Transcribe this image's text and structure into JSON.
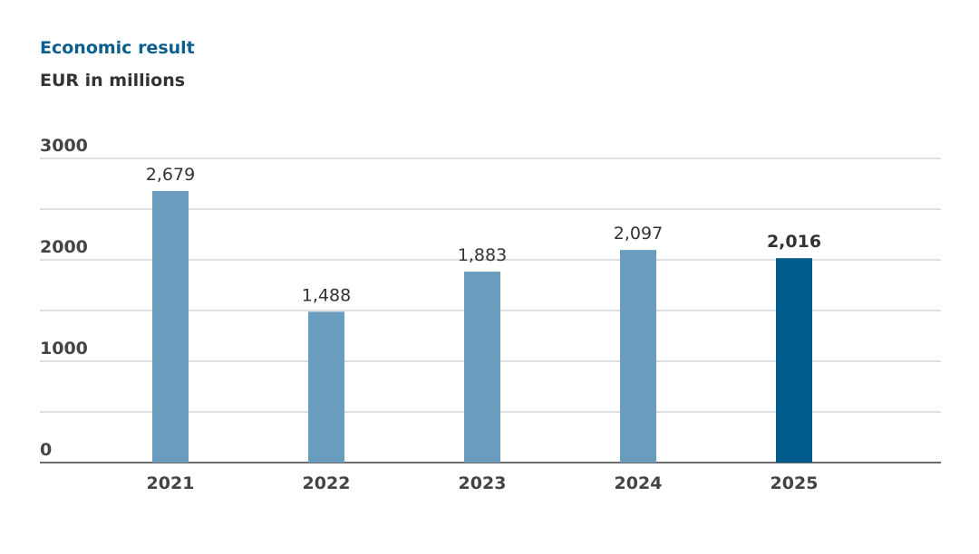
{
  "chart_data": {
    "type": "bar",
    "title": "Economic result",
    "subtitle": "EUR in millions",
    "categories": [
      "2021",
      "2022",
      "2023",
      "2024",
      "2025"
    ],
    "values": [
      2679,
      1488,
      1883,
      2097,
      2016
    ],
    "value_labels": [
      "2,679",
      "1,488",
      "1,883",
      "2,097",
      "2,016"
    ],
    "colors": [
      "#6a9dbd",
      "#6a9dbd",
      "#6a9dbd",
      "#6a9dbd",
      "#005a8c"
    ],
    "highlight_color": "#005a8c",
    "ylim": [
      0,
      3000
    ],
    "yticks": [
      0,
      1000,
      2000,
      3000
    ],
    "minor_yticks": [
      500,
      1500,
      2500
    ],
    "grid": true
  }
}
